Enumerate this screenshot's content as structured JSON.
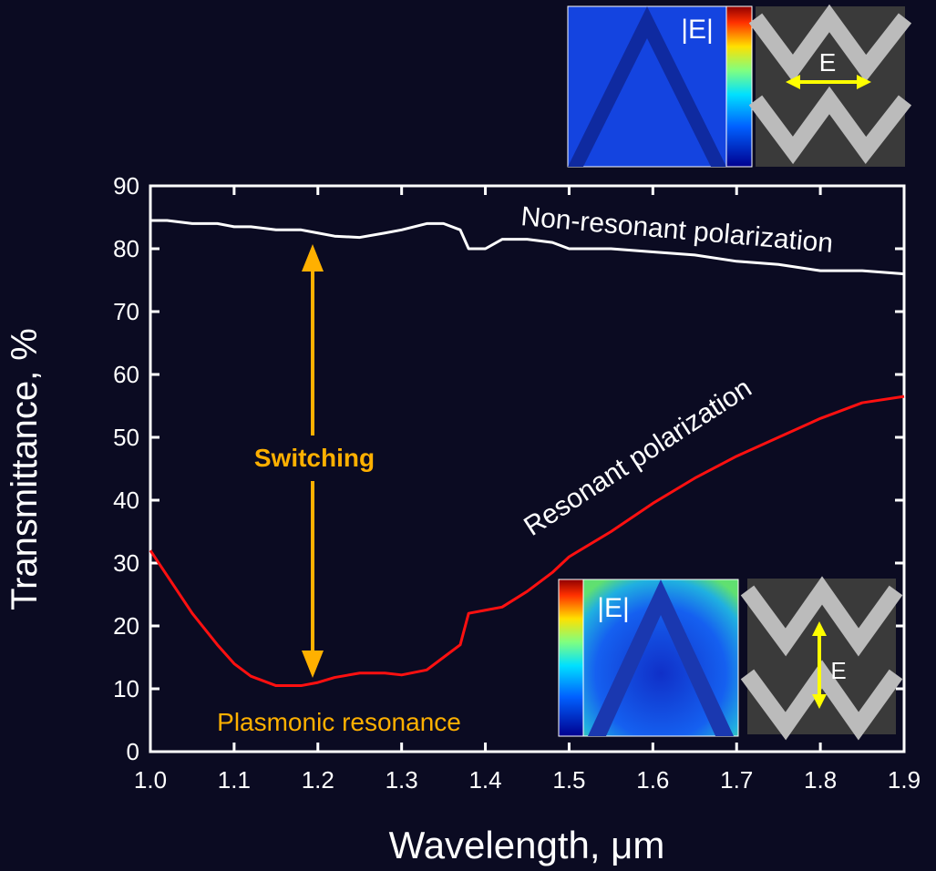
{
  "chart_data": {
    "type": "line",
    "xlabel": "Wavelength, μm",
    "ylabel": "Transmittance, %",
    "x": [
      1.0,
      1.02,
      1.05,
      1.08,
      1.1,
      1.12,
      1.15,
      1.18,
      1.2,
      1.22,
      1.25,
      1.28,
      1.3,
      1.33,
      1.35,
      1.37,
      1.38,
      1.4,
      1.42,
      1.45,
      1.48,
      1.5,
      1.55,
      1.6,
      1.65,
      1.7,
      1.75,
      1.8,
      1.85,
      1.9
    ],
    "series": [
      {
        "name": "Non-resonant polarization",
        "color": "#ffffff",
        "values": [
          84.5,
          84.5,
          84,
          84,
          83.5,
          83.5,
          83,
          83,
          82.5,
          82,
          81.8,
          82.5,
          83,
          84,
          84,
          83,
          80,
          80,
          81.5,
          81.5,
          81,
          80,
          80,
          79.5,
          79,
          78,
          77.5,
          76.5,
          76.5,
          76
        ]
      },
      {
        "name": "Resonant polarization",
        "color": "#ff1010",
        "values": [
          32,
          28,
          22,
          17,
          14,
          12,
          10.5,
          10.5,
          11,
          11.8,
          12.5,
          12.5,
          12.2,
          13,
          15,
          17,
          22,
          22.5,
          23,
          25.5,
          28.5,
          31,
          35,
          39.5,
          43.5,
          47,
          50,
          53,
          55.5,
          56.5
        ]
      }
    ],
    "xlim": [
      1.0,
      1.9
    ],
    "xticks": [
      {
        "value": 1,
        "label": "1.0"
      },
      1.1,
      1.2,
      1.3,
      1.4,
      1.5,
      1.6,
      1.7,
      1.8,
      1.9
    ],
    "ylim": [
      0,
      90
    ],
    "yticks": [
      0,
      10,
      20,
      30,
      40,
      50,
      60,
      70,
      80,
      90
    ],
    "annotations": [
      {
        "text": "Switching",
        "color": "#ffb000"
      },
      {
        "text": "Plasmonic resonance",
        "color": "#ffb000"
      },
      {
        "text": "|E|"
      },
      {
        "text": "E"
      },
      {
        "text": "|E|"
      },
      {
        "text": "E"
      }
    ]
  }
}
